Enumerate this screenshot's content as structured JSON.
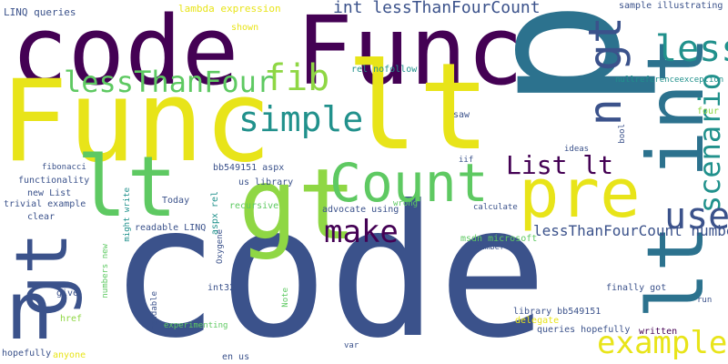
{
  "palette": {
    "dark_purple": "#440154",
    "indigo": "#3b528b",
    "teal": "#21918c",
    "blue_teal": "#2c728e",
    "green": "#5ec962",
    "light_green": "#8fd744",
    "yellow": "#fde725",
    "bright_yellow": "#e8e419"
  },
  "words": [
    {
      "text": "p",
      "color": "#2c728e"
    },
    {
      "text": "code",
      "color": "#3b528b"
    },
    {
      "text": "code Func",
      "color": "#440154"
    },
    {
      "text": "Func",
      "color": "#e8e419"
    },
    {
      "text": "lt",
      "color": "#e8e419"
    },
    {
      "text": "lt",
      "color": "#5ec962"
    },
    {
      "text": "gt",
      "color": "#8fd744"
    },
    {
      "text": "gt",
      "color": "#3b528b"
    },
    {
      "text": "n",
      "color": "#3b528b"
    },
    {
      "text": "Count",
      "color": "#5ec962"
    },
    {
      "text": "pre",
      "color": "#e8e419"
    },
    {
      "text": "lt int",
      "color": "#2c728e"
    },
    {
      "text": "n gt",
      "color": "#3b528b"
    },
    {
      "text": "less",
      "color": "#21918c"
    },
    {
      "text": "scenario",
      "color": "#21918c"
    },
    {
      "text": "simple",
      "color": "#21918c"
    },
    {
      "text": "fib",
      "color": "#8fd744"
    },
    {
      "text": "lessThanFour",
      "color": "#5ec962"
    },
    {
      "text": "int lessThanFourCount",
      "color": "#3b528b"
    },
    {
      "text": "make",
      "color": "#440154"
    },
    {
      "text": "List lt",
      "color": "#440154"
    },
    {
      "text": "use",
      "color": "#3b528b"
    },
    {
      "text": "example",
      "color": "#e8e419"
    },
    {
      "text": "lessThanFourCount numbers",
      "color": "#3b528b"
    },
    {
      "text": "lambda expression",
      "color": "#e8e419"
    },
    {
      "text": "LINQ queries",
      "color": "#3b528b"
    },
    {
      "text": "shown",
      "color": "#e8e419"
    },
    {
      "text": "recursive",
      "color": "#5ec962"
    },
    {
      "text": "rel nofollow",
      "color": "#21918c"
    },
    {
      "text": "sample illustrating",
      "color": "#3b528b"
    },
    {
      "text": "nullreferenceexception",
      "color": "#21918c"
    },
    {
      "text": "four",
      "color": "#8fd744"
    },
    {
      "text": "bool",
      "color": "#3b528b"
    },
    {
      "text": "saw",
      "color": "#3b528b"
    },
    {
      "text": "ideas",
      "color": "#3b528b"
    },
    {
      "text": "iif",
      "color": "#3b528b"
    },
    {
      "text": "bb549151 aspx",
      "color": "#3b528b"
    },
    {
      "text": "us library",
      "color": "#3b528b"
    },
    {
      "text": "aspx rel",
      "color": "#21918c"
    },
    {
      "text": "fibonacci",
      "color": "#3b528b"
    },
    {
      "text": "functionality",
      "color": "#3b528b"
    },
    {
      "text": "new List",
      "color": "#3b528b"
    },
    {
      "text": "trivial example",
      "color": "#3b528b"
    },
    {
      "text": "clear",
      "color": "#3b528b"
    },
    {
      "text": "Today",
      "color": "#3b528b"
    },
    {
      "text": "readable LINQ",
      "color": "#3b528b"
    },
    {
      "text": "might write",
      "color": "#21918c"
    },
    {
      "text": "advocate using",
      "color": "#3b528b"
    },
    {
      "text": "wrong",
      "color": "#5ec962"
    },
    {
      "text": "calculate",
      "color": "#3b528b"
    },
    {
      "text": "Oxygene",
      "color": "#3b528b"
    },
    {
      "text": "numbers new",
      "color": "#5ec962"
    },
    {
      "text": "give",
      "color": "#3b528b"
    },
    {
      "text": "href",
      "color": "#8fd744"
    },
    {
      "text": "hopefully",
      "color": "#3b528b"
    },
    {
      "text": "anyone",
      "color": "#e8e419"
    },
    {
      "text": "readable",
      "color": "#3b528b"
    },
    {
      "text": "experimenting",
      "color": "#5ec962"
    },
    {
      "text": "int32",
      "color": "#3b528b"
    },
    {
      "text": "Note",
      "color": "#5ec962"
    },
    {
      "text": "en us",
      "color": "#3b528b"
    },
    {
      "text": "var",
      "color": "#3b528b"
    },
    {
      "text": "msdn microsoft",
      "color": "#5ec962"
    },
    {
      "text": "number",
      "color": "#3b528b"
    },
    {
      "text": "library bb549151",
      "color": "#3b528b"
    },
    {
      "text": "delegate",
      "color": "#e8e419"
    },
    {
      "text": "queries hopefully",
      "color": "#3b528b"
    },
    {
      "text": "finally got",
      "color": "#3b528b"
    },
    {
      "text": "written",
      "color": "#440154"
    },
    {
      "text": "run",
      "color": "#3b528b"
    }
  ]
}
